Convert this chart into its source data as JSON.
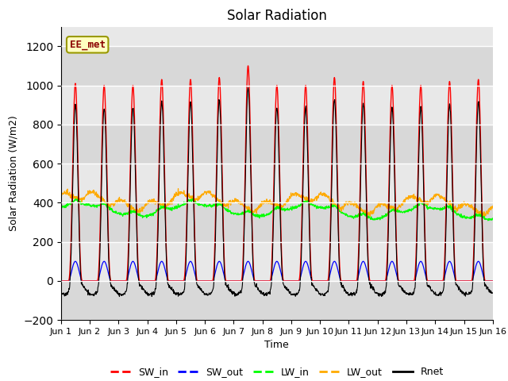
{
  "title": "Solar Radiation",
  "xlabel": "Time",
  "ylabel": "Solar Radiation (W/m2)",
  "ylim": [
    -200,
    1300
  ],
  "yticks": [
    -200,
    0,
    200,
    400,
    600,
    800,
    1000,
    1200
  ],
  "n_days": 15,
  "dt": 0.25,
  "colors": {
    "SW_in": "#ff0000",
    "SW_out": "#0000ff",
    "LW_in": "#00ff00",
    "LW_out": "#ffaa00",
    "Rnet": "#000000"
  },
  "annotation_text": "EE_met",
  "title_fontsize": 12,
  "label_fontsize": 9,
  "tick_fontsize": 8,
  "tick_labels": [
    "Jun 1",
    "Jun 2",
    "Jun 3",
    "Jun 4",
    "Jun 5",
    "Jun 6",
    "Jun 7",
    "Jun 8",
    "Jun 9",
    "Jun 10",
    "Jun 11",
    "Jun 12",
    "Jun 13",
    "Jun 14",
    "Jun 15",
    "Jun 16"
  ],
  "legend_labels": [
    "SW_in",
    "SW_out",
    "LW_in",
    "LW_out",
    "Rnet"
  ],
  "legend_colors": [
    "#ff0000",
    "#0000ff",
    "#00ff00",
    "#ffaa00",
    "#000000"
  ],
  "plot_bg_color": "#e8e8e8",
  "grid_color": "#ffffff",
  "fig_bg_color": "#ffffff",
  "SW_in_peaks": [
    1010,
    1000,
    1000,
    1030,
    1030,
    1040,
    1100,
    1000,
    1000,
    1040,
    1020,
    1000,
    1000,
    1020,
    1030
  ],
  "SW_out_peak": 100,
  "LW_in_base": 350,
  "LW_out_base": 390,
  "night_rnet": -70
}
